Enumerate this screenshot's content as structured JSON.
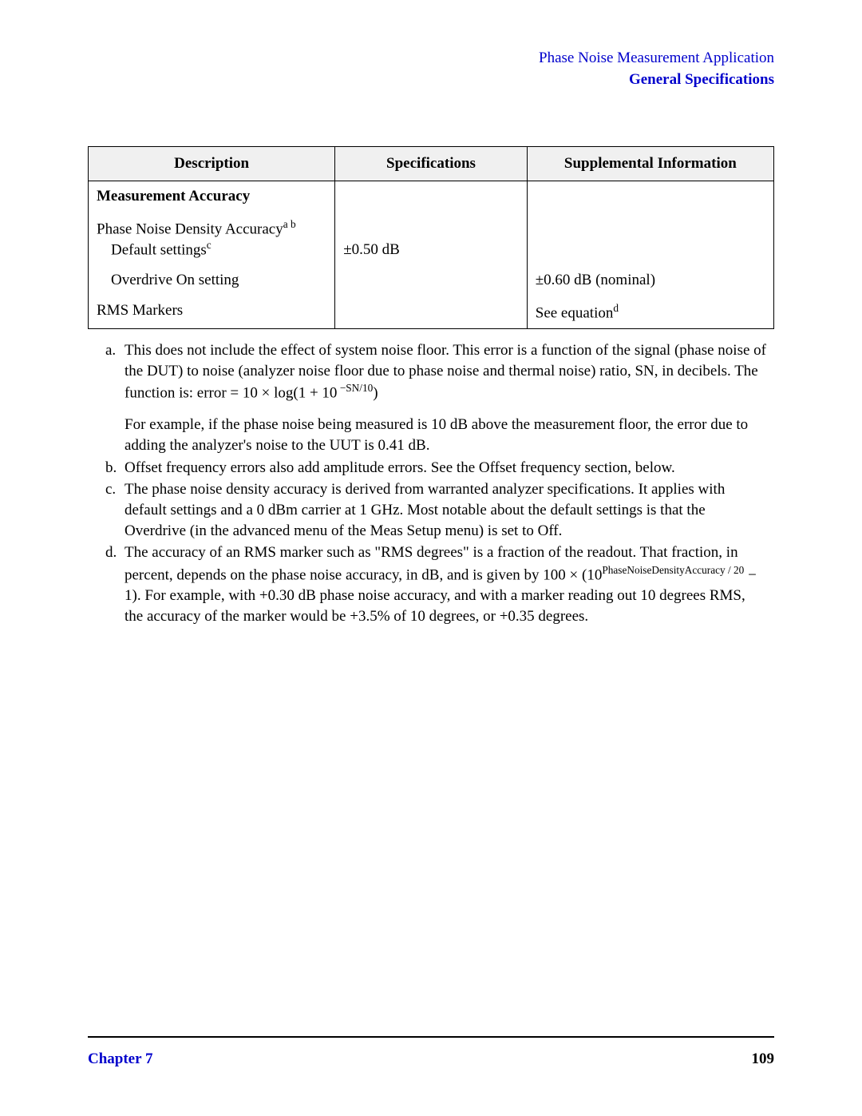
{
  "header": {
    "line1": "Phase Noise Measurement Application",
    "line2": "General Specifications"
  },
  "table": {
    "headers": {
      "description": "Description",
      "specifications": "Specifications",
      "supplemental": "Supplemental Information"
    },
    "section_title": "Measurement Accuracy",
    "rows": {
      "pna_label": "Phase Noise Density Accuracy",
      "pna_sup": "a b",
      "default_label": "Default settings",
      "default_sup": "c",
      "default_spec": "±0.50 dB",
      "overdrive_label": "Overdrive On setting",
      "overdrive_supp": "±0.60 dB (nominal)",
      "rms_label": "RMS Markers",
      "rms_supp_text": "See equation",
      "rms_supp_sup": "d"
    }
  },
  "footnotes": {
    "a": {
      "label": "a.",
      "text1": "This does not include the effect of system noise floor. This error is a function of the signal (phase noise of the DUT) to noise (analyzer noise floor due to phase noise and thermal noise) ratio, SN, in decibels. The function is: error = 10 × log(1 + 10",
      "sup1": " −SN/10",
      "text1b": ")",
      "text2": "For example, if the phase noise being measured is 10 dB above the measurement floor, the error due to adding the analyzer's noise to the UUT is 0.41 dB."
    },
    "b": {
      "label": "b.",
      "text": "Offset frequency errors also add amplitude errors. See the Offset frequency section, below."
    },
    "c": {
      "label": "c.",
      "text": "The phase noise density accuracy is derived from warranted analyzer specifications. It applies with default settings and a 0 dBm carrier at 1 GHz. Most notable about the default settings is that the Overdrive (in the advanced menu of the Meas Setup menu) is set to Off."
    },
    "d": {
      "label": "d.",
      "text1": "The accuracy of an RMS marker such as \"RMS degrees\" is a fraction of the readout. That fraction, in percent, depends on the phase noise accuracy, in dB, and is given by 100 × (10",
      "sup1": "PhaseNoiseDensityAccuracy / 20",
      "text2": " − 1). For example, with +0.30 dB phase noise accuracy, and with a marker reading out 10 degrees RMS, the accuracy of the marker would be +3.5% of 10 degrees, or +0.35 degrees."
    }
  },
  "footer": {
    "chapter": "Chapter 7",
    "page": "109"
  }
}
